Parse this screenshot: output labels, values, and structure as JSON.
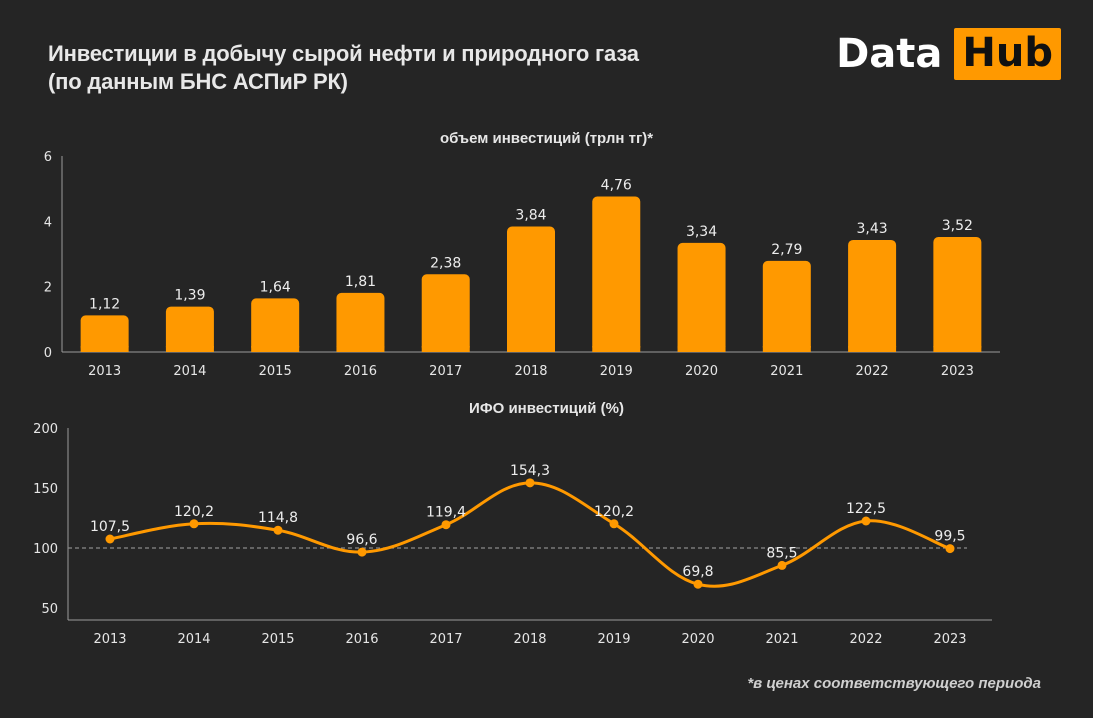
{
  "header": {
    "title_line1": "Инвестиции в добычу сырой нефти и природного газа",
    "title_line2": "(по данным БНС АСПиР РК)",
    "logo_part1": "Data",
    "logo_part2": "Hub"
  },
  "footnote": "*в ценах соответствующего периода",
  "colors": {
    "accent": "#ff9900",
    "background": "#252525",
    "text": "#e6e6e6"
  },
  "chart_data": [
    {
      "type": "bar",
      "title": "объем инвестиций (трлн тг)*",
      "categories": [
        "2013",
        "2014",
        "2015",
        "2016",
        "2017",
        "2018",
        "2019",
        "2020",
        "2021",
        "2022",
        "2023"
      ],
      "values": [
        1.12,
        1.39,
        1.64,
        1.81,
        2.38,
        3.84,
        4.76,
        3.34,
        2.79,
        3.43,
        3.52
      ],
      "labels": [
        "1,12",
        "1,39",
        "1,64",
        "1,81",
        "2,38",
        "3,84",
        "4,76",
        "3,34",
        "2,79",
        "3,43",
        "3,52"
      ],
      "ylim": [
        0,
        6
      ],
      "yticks": [
        "0",
        "2",
        "4",
        "6"
      ],
      "ytick_values": [
        0,
        2,
        4,
        6
      ]
    },
    {
      "type": "line",
      "title": "ИФО инвестиций (%)",
      "categories": [
        "2013",
        "2014",
        "2015",
        "2016",
        "2017",
        "2018",
        "2019",
        "2020",
        "2021",
        "2022",
        "2023"
      ],
      "values": [
        107.5,
        120.2,
        114.8,
        96.6,
        119.4,
        154.3,
        120.2,
        69.8,
        85.5,
        122.5,
        99.5
      ],
      "labels": [
        "107,5",
        "120,2",
        "114,8",
        "96,6",
        "119,4",
        "154,3",
        "120,2",
        "69,8",
        "85,5",
        "122,5",
        "99,5"
      ],
      "ylim": [
        40,
        200
      ],
      "yticks": [
        "50",
        "100",
        "150",
        "200"
      ],
      "ytick_values": [
        50,
        100,
        150,
        200
      ],
      "reference_line": 100
    }
  ]
}
